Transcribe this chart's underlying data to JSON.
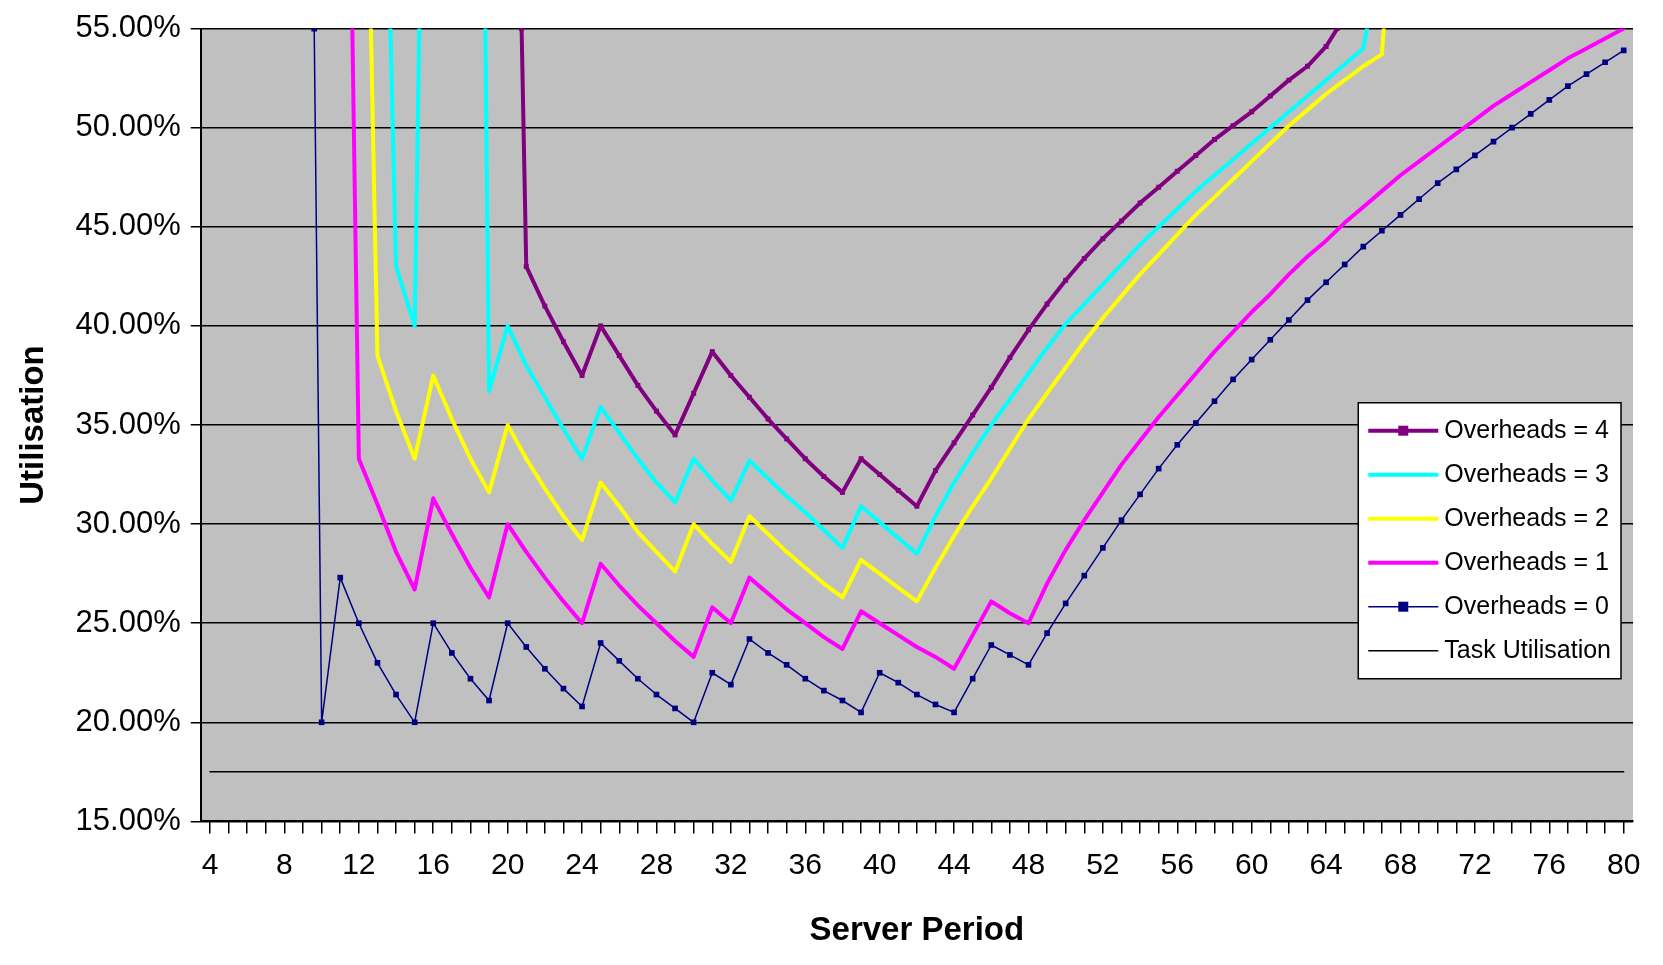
{
  "chart_data": {
    "type": "line",
    "xlabel": "Server Period",
    "ylabel": "Utilisation",
    "xlim": [
      3.5,
      80.5
    ],
    "ylim": [
      15,
      55
    ],
    "xticks": [
      4,
      {
        "value": 5,
        "label": null
      },
      {
        "value": 6,
        "label": null
      },
      {
        "value": 7,
        "label": null
      },
      8,
      {
        "value": 9,
        "label": null
      },
      {
        "value": 10,
        "label": null
      },
      {
        "value": 11,
        "label": null
      },
      12,
      {
        "value": 13,
        "label": null
      },
      {
        "value": 14,
        "label": null
      },
      {
        "value": 15,
        "label": null
      },
      16,
      {
        "value": 17,
        "label": null
      },
      {
        "value": 18,
        "label": null
      },
      {
        "value": 19,
        "label": null
      },
      20,
      {
        "value": 21,
        "label": null
      },
      {
        "value": 22,
        "label": null
      },
      {
        "value": 23,
        "label": null
      },
      24,
      {
        "value": 25,
        "label": null
      },
      {
        "value": 26,
        "label": null
      },
      {
        "value": 27,
        "label": null
      },
      28,
      {
        "value": 29,
        "label": null
      },
      {
        "value": 30,
        "label": null
      },
      {
        "value": 31,
        "label": null
      },
      32,
      {
        "value": 33,
        "label": null
      },
      {
        "value": 34,
        "label": null
      },
      {
        "value": 35,
        "label": null
      },
      36,
      {
        "value": 37,
        "label": null
      },
      {
        "value": 38,
        "label": null
      },
      {
        "value": 39,
        "label": null
      },
      40,
      {
        "value": 41,
        "label": null
      },
      {
        "value": 42,
        "label": null
      },
      {
        "value": 43,
        "label": null
      },
      44,
      {
        "value": 45,
        "label": null
      },
      {
        "value": 46,
        "label": null
      },
      {
        "value": 47,
        "label": null
      },
      48,
      {
        "value": 49,
        "label": null
      },
      {
        "value": 50,
        "label": null
      },
      {
        "value": 51,
        "label": null
      },
      52,
      {
        "value": 53,
        "label": null
      },
      {
        "value": 54,
        "label": null
      },
      {
        "value": 55,
        "label": null
      },
      56,
      {
        "value": 57,
        "label": null
      },
      {
        "value": 58,
        "label": null
      },
      {
        "value": 59,
        "label": null
      },
      60,
      {
        "value": 61,
        "label": null
      },
      {
        "value": 62,
        "label": null
      },
      {
        "value": 63,
        "label": null
      },
      64,
      {
        "value": 65,
        "label": null
      },
      {
        "value": 66,
        "label": null
      },
      {
        "value": 67,
        "label": null
      },
      68,
      {
        "value": 69,
        "label": null
      },
      {
        "value": 70,
        "label": null
      },
      {
        "value": 71,
        "label": null
      },
      72,
      {
        "value": 73,
        "label": null
      },
      {
        "value": 74,
        "label": null
      },
      {
        "value": 75,
        "label": null
      },
      76,
      {
        "value": 77,
        "label": null
      },
      {
        "value": 78,
        "label": null
      },
      {
        "value": 79,
        "label": null
      },
      80
    ],
    "yticks": [
      {
        "value": 15,
        "label": "15.00%"
      },
      {
        "value": 20,
        "label": "20.00%"
      },
      {
        "value": 25,
        "label": "25.00%"
      },
      {
        "value": 30,
        "label": "30.00%"
      },
      {
        "value": 35,
        "label": "35.00%"
      },
      {
        "value": 40,
        "label": "40.00%"
      },
      {
        "value": 45,
        "label": "45.00%"
      },
      {
        "value": 50,
        "label": "50.00%"
      },
      {
        "value": 55,
        "label": "55.00%"
      }
    ],
    "grid": "y",
    "legend": "right",
    "line_style": "solid",
    "series": [
      {
        "name": "Overheads = 4",
        "color": "#800080",
        "marker": "square",
        "x": [
          20.75,
          21,
          22,
          23,
          24,
          25,
          26,
          27,
          28,
          29,
          30,
          31,
          32,
          33,
          34,
          35,
          36,
          37,
          38,
          39,
          40,
          41,
          42,
          43,
          44,
          45,
          46,
          47,
          48,
          49,
          50,
          51,
          52,
          53,
          54,
          55,
          56,
          57,
          58,
          59,
          60,
          61,
          62,
          63,
          64,
          64.6
        ],
        "values": [
          55,
          43.0,
          41.0,
          39.2,
          37.5,
          40.0,
          38.5,
          37.0,
          35.7,
          34.5,
          36.6,
          38.7,
          37.5,
          36.4,
          35.3,
          34.3,
          33.3,
          32.4,
          31.6,
          33.3,
          32.5,
          31.7,
          30.9,
          32.7,
          34.1,
          35.5,
          36.9,
          38.4,
          39.8,
          41.1,
          42.3,
          43.4,
          44.4,
          45.3,
          46.2,
          47.0,
          47.8,
          48.6,
          49.4,
          50.1,
          50.8,
          51.6,
          52.4,
          53.1,
          54.1,
          55
        ]
      },
      {
        "name": "Overheads = 3",
        "color": "#00ffff",
        "marker": "none",
        "x": [
          13.7,
          14,
          15,
          15.25,
          17,
          18.8,
          19,
          20,
          21,
          22,
          23,
          24,
          25,
          26,
          27,
          28,
          29,
          30,
          31,
          32,
          33,
          34,
          35,
          36,
          37,
          38,
          39,
          40,
          41,
          42,
          43,
          44,
          45,
          46,
          47,
          48,
          49,
          50,
          51,
          52,
          53,
          54,
          55,
          56,
          57,
          58,
          59,
          60,
          61,
          62,
          63,
          64,
          65,
          66,
          66.2
        ],
        "values": [
          55,
          43.0,
          40.0,
          55,
          null,
          55,
          36.7,
          40.0,
          38.0,
          36.4,
          34.8,
          33.3,
          35.9,
          34.6,
          33.3,
          32.1,
          31.1,
          33.3,
          32.2,
          31.2,
          33.2,
          32.3,
          31.4,
          30.6,
          29.7,
          28.8,
          30.9,
          30.1,
          29.3,
          28.5,
          30.4,
          32.1,
          33.6,
          35.0,
          36.3,
          37.6,
          38.9,
          40.1,
          41.1,
          42.1,
          43.1,
          44.1,
          45.0,
          45.9,
          46.8,
          47.6,
          48.4,
          49.2,
          50.0,
          50.8,
          51.6,
          52.4,
          53.2,
          54.0,
          55
        ]
      },
      {
        "name": "Overheads = 2",
        "color": "#ffff00",
        "marker": "none",
        "x": [
          12.65,
          13,
          14,
          15,
          16,
          17,
          18,
          19,
          20,
          21,
          22,
          23,
          24,
          25,
          26,
          27,
          28,
          29,
          30,
          31,
          32,
          33,
          34,
          35,
          36,
          37,
          38,
          39,
          40,
          41,
          42,
          43,
          44,
          45,
          46,
          47,
          48,
          49,
          50,
          51,
          52,
          53,
          54,
          55,
          56,
          57,
          58,
          59,
          60,
          61,
          62,
          63,
          64,
          65,
          66,
          67,
          67.1
        ],
        "values": [
          55,
          38.5,
          35.7,
          33.3,
          37.5,
          35.3,
          33.3,
          31.6,
          35.0,
          33.3,
          31.8,
          30.4,
          29.2,
          32.1,
          30.9,
          29.6,
          28.6,
          27.6,
          30.0,
          29.0,
          28.1,
          30.4,
          29.5,
          28.6,
          27.8,
          27.0,
          26.3,
          28.2,
          27.5,
          26.8,
          26.1,
          27.8,
          29.4,
          30.9,
          32.3,
          33.8,
          35.3,
          36.6,
          37.9,
          39.2,
          40.4,
          41.5,
          42.6,
          43.6,
          44.6,
          45.6,
          46.5,
          47.4,
          48.3,
          49.2,
          50.1,
          50.9,
          51.7,
          52.4,
          53.1,
          53.7,
          55
        ]
      },
      {
        "name": "Overheads = 1",
        "color": "#ff00ff",
        "marker": "none",
        "x": [
          11.65,
          12,
          13,
          14,
          15,
          16,
          17,
          18,
          19,
          20,
          21,
          22,
          23,
          24,
          25,
          26,
          27,
          28,
          29,
          30,
          31,
          32,
          33,
          34,
          35,
          36,
          37,
          38,
          39,
          40,
          41,
          42,
          43,
          44,
          45,
          46,
          47,
          48,
          49,
          50,
          51,
          52,
          53,
          54,
          55,
          56,
          57,
          58,
          59,
          60,
          61,
          62,
          63,
          64,
          65,
          66,
          67,
          68,
          69,
          70,
          71,
          72,
          73,
          74,
          75,
          76,
          77,
          78,
          79,
          80
        ],
        "values": [
          55,
          33.3,
          31.0,
          28.6,
          26.7,
          31.3,
          29.5,
          27.8,
          26.3,
          30.0,
          28.6,
          27.3,
          26.1,
          25.0,
          28.0,
          26.9,
          25.9,
          25.0,
          24.1,
          23.3,
          25.8,
          25.0,
          27.3,
          26.5,
          25.7,
          25.0,
          24.3,
          23.7,
          25.6,
          25.0,
          24.4,
          23.8,
          23.3,
          22.7,
          24.4,
          26.1,
          25.5,
          25.0,
          27.0,
          28.7,
          30.2,
          31.6,
          33.0,
          34.2,
          35.4,
          36.5,
          37.6,
          38.7,
          39.7,
          40.7,
          41.6,
          42.6,
          43.5,
          44.3,
          45.2,
          46.0,
          46.8,
          47.6,
          48.3,
          49.0,
          49.7,
          50.4,
          51.1,
          51.7,
          52.3,
          52.9,
          53.5,
          54.0,
          54.5,
          55.0
        ]
      },
      {
        "name": "Overheads = 0",
        "color": "#000080",
        "marker": "square",
        "x": [
          9.6,
          10,
          11,
          12,
          13,
          14,
          15,
          16,
          17,
          18,
          19,
          20,
          21,
          22,
          23,
          24,
          25,
          26,
          27,
          28,
          29,
          30,
          31,
          32,
          33,
          34,
          35,
          36,
          37,
          38,
          39,
          40,
          41,
          42,
          43,
          44,
          45,
          46,
          47,
          48,
          49,
          50,
          51,
          52,
          53,
          54,
          55,
          56,
          57,
          58,
          59,
          60,
          61,
          62,
          63,
          64,
          65,
          66,
          67,
          68,
          69,
          70,
          71,
          72,
          73,
          74,
          75,
          76,
          77,
          78,
          79,
          80
        ],
        "values": [
          55,
          20.0,
          27.3,
          25.0,
          23.0,
          21.4,
          20.0,
          25.0,
          23.5,
          22.2,
          21.1,
          25.0,
          23.8,
          22.7,
          21.7,
          20.8,
          24.0,
          23.1,
          22.2,
          21.4,
          20.7,
          20.0,
          22.5,
          21.9,
          24.2,
          23.5,
          22.9,
          22.2,
          21.6,
          21.1,
          20.5,
          22.5,
          22.0,
          21.4,
          20.9,
          20.5,
          22.2,
          23.9,
          23.4,
          22.9,
          24.5,
          26.0,
          27.4,
          28.8,
          30.2,
          31.5,
          32.8,
          34.0,
          35.1,
          36.2,
          37.3,
          38.3,
          39.3,
          40.3,
          41.3,
          42.2,
          43.1,
          44.0,
          44.8,
          45.6,
          46.4,
          47.2,
          47.9,
          48.6,
          49.3,
          50.0,
          50.7,
          51.4,
          52.1,
          52.7,
          53.3,
          53.9
        ]
      },
      {
        "name": "Task Utilisation",
        "color": "#000000",
        "marker": "none",
        "x": [
          4,
          80
        ],
        "values": [
          17.5,
          17.5
        ]
      }
    ]
  }
}
